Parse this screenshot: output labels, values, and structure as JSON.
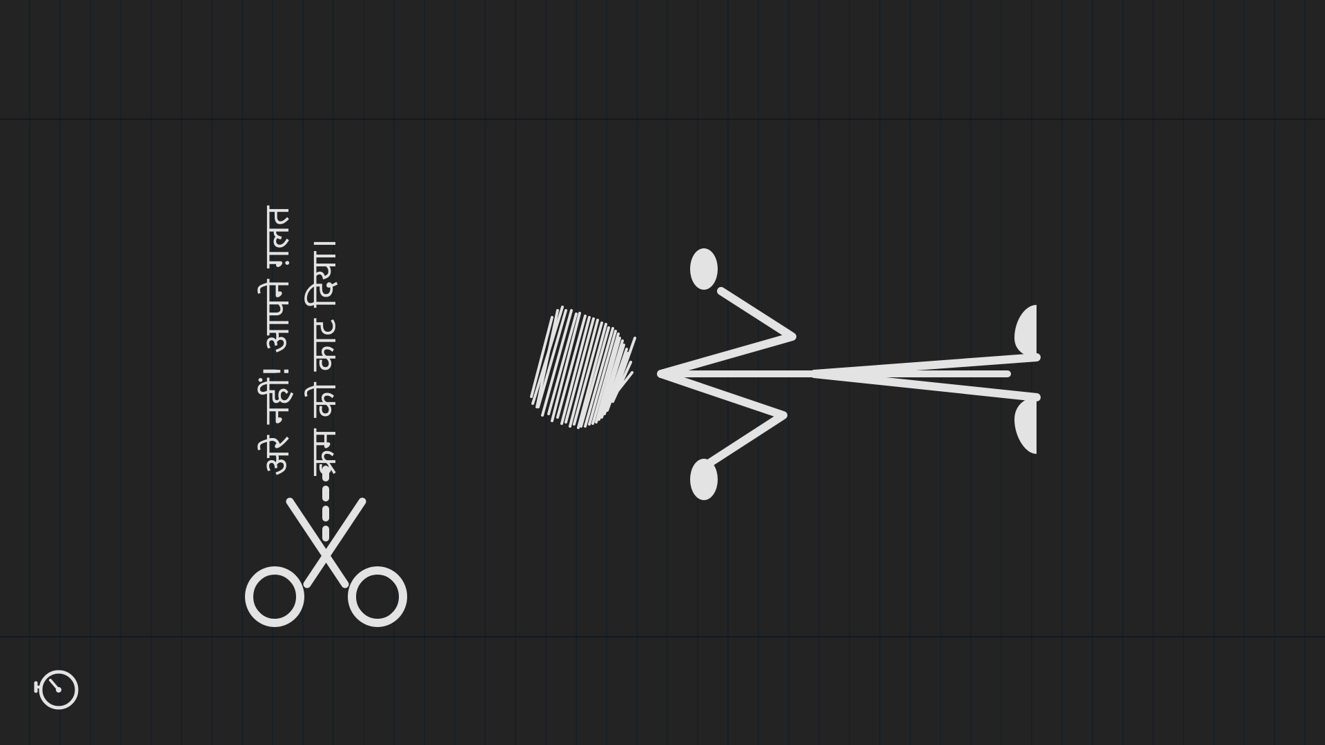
{
  "message": {
    "line1": "अरे नहीं! आपने ग़लत",
    "line2": "क्रम को काट दिया।"
  },
  "icons": {
    "scissors": "scissors-icon",
    "timer": "stopwatch-icon",
    "figure": "stick-figure"
  },
  "colors": {
    "background": "#232323",
    "chalk": "#e3e3e3",
    "ruled_line": "#141e28"
  }
}
